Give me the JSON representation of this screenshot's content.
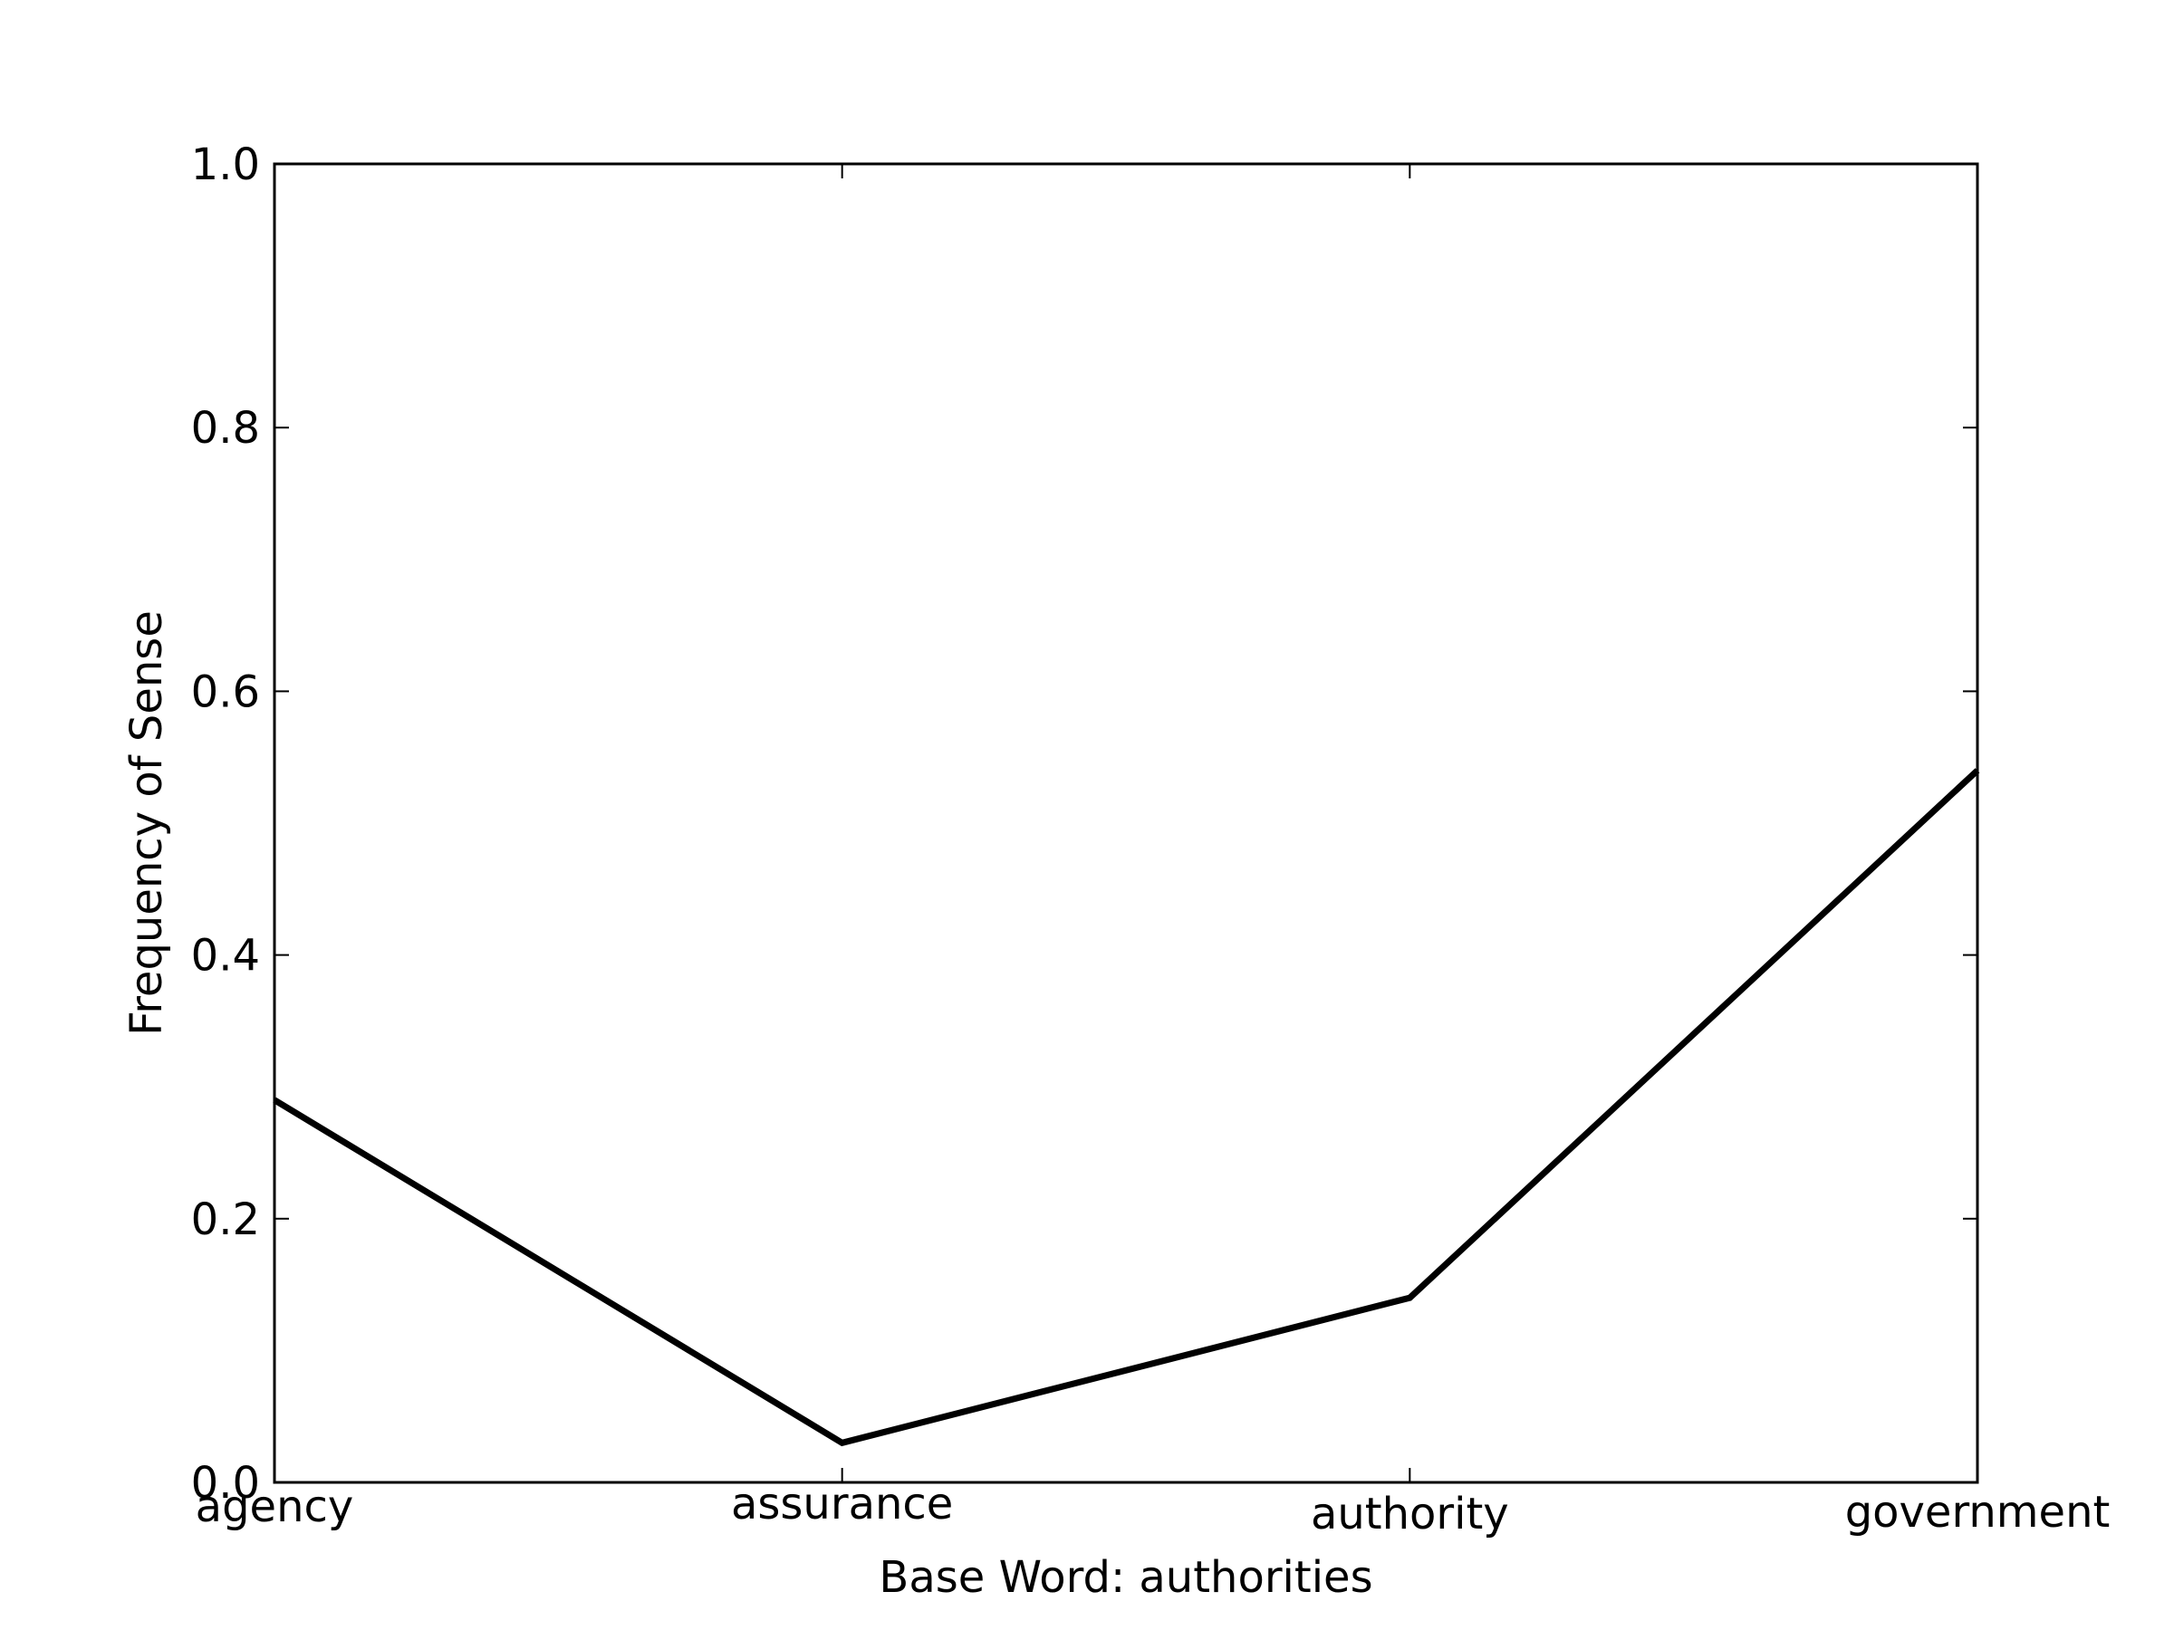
{
  "chart_data": {
    "type": "line",
    "title": "",
    "xlabel": "Base Word: authorities",
    "ylabel": "Frequency of Sense",
    "categories": [
      "agency",
      "assurance",
      "authority",
      "government"
    ],
    "series": [
      {
        "values": [
          0.29,
          0.03,
          0.14,
          0.54
        ]
      }
    ],
    "ylim": [
      0.0,
      1.0
    ],
    "yticks": [
      "0.0",
      "0.2",
      "0.4",
      "0.6",
      "0.8",
      "1.0"
    ],
    "grid": false,
    "legend": "none",
    "line_color": "#000000"
  }
}
